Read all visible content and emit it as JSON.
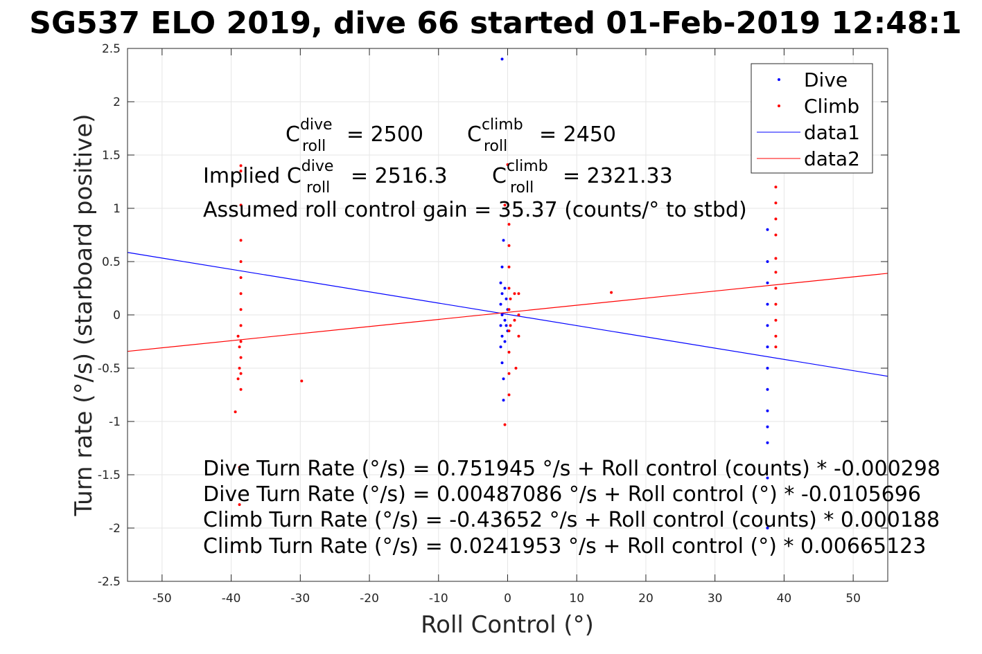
{
  "chart_data": {
    "type": "scatter",
    "title": "SG537 ELO 2019, dive 66 started 01-Feb-2019 12:48:1",
    "xlabel": "Roll Control (°)",
    "ylabel": "Turn rate (°/s) (starboard positive)",
    "xlim": [
      -55,
      55
    ],
    "ylim": [
      -2.5,
      2.5
    ],
    "grid": true,
    "legend_position": "top-right",
    "x_ticks": [
      "-50",
      "-40",
      "-30",
      "-20",
      "-10",
      "0",
      "10",
      "20",
      "30",
      "40",
      "50"
    ],
    "y_ticks": [
      "-2.5",
      "-2",
      "-1.5",
      "-1",
      "-0.5",
      "0",
      "0.5",
      "1",
      "1.5",
      "2",
      "2.5"
    ],
    "series": [
      {
        "name": "Dive",
        "kind": "points",
        "color": "#0000ff",
        "points": [
          {
            "x": -0.8,
            "y": 2.4
          },
          {
            "x": -1.0,
            "y": 0.3
          },
          {
            "x": -1.0,
            "y": 0.1
          },
          {
            "x": -1.0,
            "y": -0.1
          },
          {
            "x": -1.0,
            "y": -0.3
          },
          {
            "x": -0.8,
            "y": 0.45
          },
          {
            "x": -0.8,
            "y": 0.2
          },
          {
            "x": -0.8,
            "y": 0.0
          },
          {
            "x": -0.8,
            "y": -0.2
          },
          {
            "x": -0.8,
            "y": -0.45
          },
          {
            "x": -0.6,
            "y": -0.6
          },
          {
            "x": -0.6,
            "y": -0.8
          },
          {
            "x": -0.6,
            "y": 0.7
          },
          {
            "x": -0.4,
            "y": 0.25
          },
          {
            "x": -0.4,
            "y": -0.05
          },
          {
            "x": -0.4,
            "y": -0.25
          },
          {
            "x": -0.2,
            "y": 0.15
          },
          {
            "x": -0.2,
            "y": -0.1
          },
          {
            "x": 0.0,
            "y": 0.05
          },
          {
            "x": 0.0,
            "y": -0.15
          },
          {
            "x": 37.6,
            "y": 0.8
          },
          {
            "x": 37.6,
            "y": 0.5
          },
          {
            "x": 37.6,
            "y": 0.3
          },
          {
            "x": 37.6,
            "y": 0.1
          },
          {
            "x": 37.6,
            "y": -0.1
          },
          {
            "x": 37.6,
            "y": -0.3
          },
          {
            "x": 37.6,
            "y": -0.5
          },
          {
            "x": 37.6,
            "y": -0.7
          },
          {
            "x": 37.6,
            "y": -0.9
          },
          {
            "x": 37.6,
            "y": -1.05
          },
          {
            "x": 37.6,
            "y": -1.2
          },
          {
            "x": 37.6,
            "y": -1.53
          },
          {
            "x": 37.6,
            "y": -2.0
          }
        ]
      },
      {
        "name": "Climb",
        "kind": "points",
        "color": "#ff0000",
        "points": [
          {
            "x": -38.6,
            "y": 1.4
          },
          {
            "x": -38.6,
            "y": 1.35
          },
          {
            "x": -38.6,
            "y": 1.03
          },
          {
            "x": -38.6,
            "y": 0.7
          },
          {
            "x": -38.6,
            "y": 0.5
          },
          {
            "x": -38.6,
            "y": 0.35
          },
          {
            "x": -38.6,
            "y": 0.2
          },
          {
            "x": -38.6,
            "y": 0.05
          },
          {
            "x": -38.6,
            "y": -0.1
          },
          {
            "x": -38.6,
            "y": -0.25
          },
          {
            "x": -38.6,
            "y": -0.4
          },
          {
            "x": -38.6,
            "y": -0.55
          },
          {
            "x": -38.6,
            "y": -0.7
          },
          {
            "x": -38.8,
            "y": -0.3
          },
          {
            "x": -38.8,
            "y": -0.5
          },
          {
            "x": -39.0,
            "y": -0.2
          },
          {
            "x": -39.0,
            "y": -0.6
          },
          {
            "x": -39.4,
            "y": -0.91
          },
          {
            "x": -38.8,
            "y": -1.43
          },
          {
            "x": -38.8,
            "y": -1.78
          },
          {
            "x": -38.8,
            "y": -2.21
          },
          {
            "x": -29.8,
            "y": -0.62
          },
          {
            "x": -0.4,
            "y": 1.03
          },
          {
            "x": 0.0,
            "y": 1.41
          },
          {
            "x": 0.2,
            "y": 0.85
          },
          {
            "x": 0.2,
            "y": 0.65
          },
          {
            "x": 0.2,
            "y": 0.45
          },
          {
            "x": 0.2,
            "y": 0.25
          },
          {
            "x": 0.2,
            "y": 0.05
          },
          {
            "x": 0.2,
            "y": -0.15
          },
          {
            "x": 0.2,
            "y": -0.35
          },
          {
            "x": 0.2,
            "y": -0.55
          },
          {
            "x": 0.2,
            "y": -0.75
          },
          {
            "x": -0.4,
            "y": -1.03
          },
          {
            "x": 0.4,
            "y": 0.15
          },
          {
            "x": 0.4,
            "y": -0.1
          },
          {
            "x": 1.0,
            "y": 0.2
          },
          {
            "x": 1.0,
            "y": -0.05
          },
          {
            "x": 1.6,
            "y": 0.2
          },
          {
            "x": 1.6,
            "y": 0.0
          },
          {
            "x": 1.6,
            "y": -0.2
          },
          {
            "x": 1.2,
            "y": -0.5
          },
          {
            "x": 15.0,
            "y": 0.21
          },
          {
            "x": 38.8,
            "y": 1.2
          },
          {
            "x": 38.8,
            "y": 1.05
          },
          {
            "x": 38.8,
            "y": 0.9
          },
          {
            "x": 38.8,
            "y": 0.75
          },
          {
            "x": 38.8,
            "y": 0.53
          },
          {
            "x": 38.8,
            "y": 0.4
          },
          {
            "x": 38.8,
            "y": 0.25
          },
          {
            "x": 38.8,
            "y": 0.1
          },
          {
            "x": 38.8,
            "y": -0.05
          },
          {
            "x": 38.8,
            "y": -0.2
          },
          {
            "x": 38.8,
            "y": -0.3
          }
        ]
      },
      {
        "name": "data1",
        "kind": "line",
        "color": "#0000ff",
        "points": [
          {
            "x": -55,
            "y": 0.586
          },
          {
            "x": 55,
            "y": -0.576
          }
        ]
      },
      {
        "name": "data2",
        "kind": "line",
        "color": "#ff0000",
        "points": [
          {
            "x": -55,
            "y": -0.342
          },
          {
            "x": 55,
            "y": 0.39
          }
        ]
      }
    ],
    "annotations": {
      "c_roll": {
        "dive_base": "C",
        "dive_sup": "dive",
        "dive_sub": "roll",
        "dive_value": "= 2500",
        "climb_base": "C",
        "climb_sup": "climb",
        "climb_sub": "roll",
        "climb_value": "= 2450"
      },
      "implied": {
        "prefix": "Implied C",
        "dive_sup": "dive",
        "dive_sub": "roll",
        "dive_value": "= 2516.3",
        "climb_base": "C",
        "climb_sup": "climb",
        "climb_sub": "roll",
        "climb_value": "= 2321.33"
      },
      "gain": "Assumed roll control gain = 35.37 (counts/° to stbd)",
      "fits": [
        "Dive Turn Rate (°/s) = 0.751945 °/s + Roll control (counts) * -0.000298",
        "Dive Turn Rate (°/s) = 0.00487086 °/s + Roll control (°) * -0.0105696",
        "Climb Turn Rate (°/s) = -0.43652 °/s + Roll control (counts) * 0.000188",
        "Climb Turn Rate (°/s) = 0.0241953 °/s + Roll control (°) * 0.00665123"
      ]
    }
  }
}
